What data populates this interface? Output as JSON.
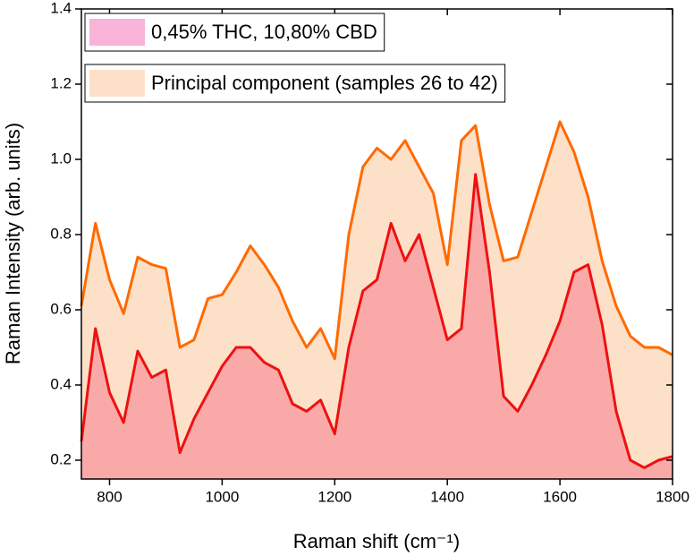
{
  "chart_data": {
    "type": "area",
    "xlabel": "Raman shift (cm⁻¹)",
    "ylabel": "Raman Intensity (arb. units)",
    "x": [
      750,
      775,
      800,
      825,
      850,
      875,
      900,
      925,
      950,
      975,
      1000,
      1025,
      1050,
      1075,
      1100,
      1125,
      1150,
      1175,
      1200,
      1225,
      1250,
      1275,
      1300,
      1325,
      1350,
      1375,
      1400,
      1425,
      1450,
      1475,
      1500,
      1525,
      1550,
      1575,
      1600,
      1625,
      1650,
      1675,
      1700,
      1725,
      1750,
      1775,
      1800
    ],
    "series": [
      {
        "name": "Principal component (samples 26 to 42)",
        "color": "#ff6a00",
        "fill": "#fde0c8",
        "values": [
          0.61,
          0.83,
          0.68,
          0.59,
          0.74,
          0.72,
          0.71,
          0.5,
          0.52,
          0.63,
          0.64,
          0.7,
          0.77,
          0.72,
          0.66,
          0.57,
          0.5,
          0.55,
          0.47,
          0.8,
          0.98,
          1.03,
          1.0,
          1.05,
          0.98,
          0.91,
          0.72,
          1.05,
          1.09,
          0.88,
          0.73,
          0.74,
          0.86,
          0.98,
          1.1,
          1.02,
          0.9,
          0.73,
          0.61,
          0.53,
          0.5,
          0.5,
          0.48
        ]
      },
      {
        "name": "0,45% THC, 10,80% CBD",
        "color": "#ee1111",
        "fill": "#f9aaa8",
        "legend_fill": "#f9b3d9",
        "values": [
          0.25,
          0.55,
          0.38,
          0.3,
          0.49,
          0.42,
          0.44,
          0.22,
          0.31,
          0.38,
          0.45,
          0.5,
          0.5,
          0.46,
          0.44,
          0.35,
          0.33,
          0.36,
          0.27,
          0.5,
          0.65,
          0.68,
          0.83,
          0.73,
          0.8,
          0.66,
          0.52,
          0.55,
          0.96,
          0.7,
          0.37,
          0.33,
          0.4,
          0.48,
          0.57,
          0.7,
          0.72,
          0.56,
          0.33,
          0.2,
          0.18,
          0.2,
          0.21
        ]
      }
    ],
    "xlim": [
      750,
      1800
    ],
    "xticks": [
      800,
      1000,
      1200,
      1400,
      1600,
      1800
    ],
    "ylim": [
      0.15,
      1.4
    ],
    "yticks": [
      0.2,
      0.4,
      0.6,
      0.8,
      {
        "value": 1,
        "label": "1.0"
      },
      1.2,
      1.4
    ],
    "legend": "upper left"
  }
}
